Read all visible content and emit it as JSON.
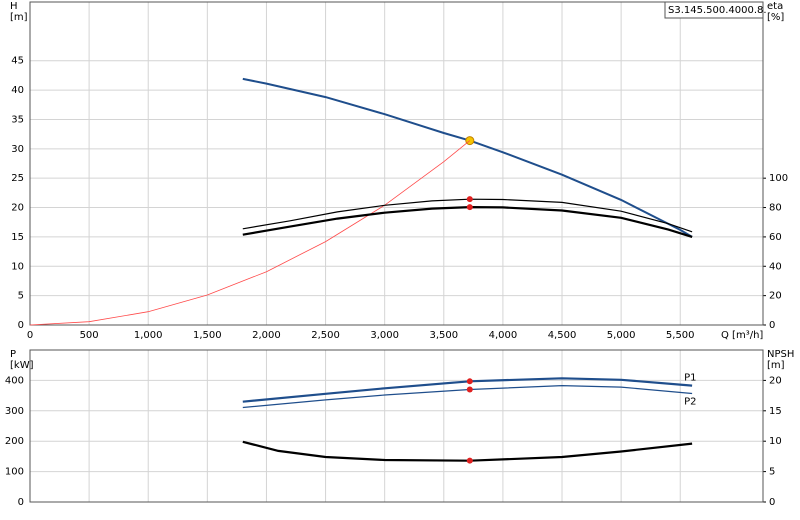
{
  "chart_data": [
    {
      "type": "line",
      "annotation": "S3.145.500.4000.8.",
      "y_label": "H",
      "y_unit": "[m]",
      "y2_label": "eta",
      "y2_unit": "[%]",
      "x_label": "Q [m³/h]",
      "xlim": [
        0,
        6200
      ],
      "ylim": [
        0,
        55
      ],
      "y2lim": [
        0,
        220
      ],
      "xticks": [
        0,
        500,
        {
          "value": 1000,
          "label": "1,000"
        },
        {
          "value": 1500,
          "label": "1,500"
        },
        {
          "value": 2000,
          "label": "2,000"
        },
        {
          "value": 2500,
          "label": "2,500"
        },
        {
          "value": 3000,
          "label": "3,000"
        },
        {
          "value": 3500,
          "label": "3,500"
        },
        {
          "value": 4000,
          "label": "4,000"
        },
        {
          "value": 4500,
          "label": "4,500"
        },
        {
          "value": 5000,
          "label": "5,000"
        },
        {
          "value": 5500,
          "label": "5,500"
        }
      ],
      "yticks": [
        0,
        5,
        10,
        15,
        20,
        25,
        30,
        35,
        40,
        45
      ],
      "y2ticks": [
        0,
        20,
        40,
        60,
        80,
        100
      ],
      "grid": true,
      "operating_point": {
        "x": 3720
      },
      "series": [
        {
          "color": "#1f4e8c",
          "width": 2,
          "marker_color": "#f5c400",
          "x": [
            1800,
            2000,
            2500,
            3000,
            3500,
            3720,
            4000,
            4500,
            5000,
            5500,
            5600
          ],
          "values": [
            41.9,
            41.1,
            38.8,
            35.9,
            32.7,
            31.4,
            29.4,
            25.6,
            21.3,
            16.2,
            15.0
          ]
        },
        {
          "color": "#ff4a4a",
          "width": 0.8,
          "x": [
            0,
            500,
            1000,
            1500,
            2000,
            2500,
            3000,
            3500,
            3720
          ],
          "values": [
            0,
            0.57,
            2.27,
            5.1,
            9.08,
            14.2,
            20.4,
            27.8,
            31.4
          ]
        },
        {
          "color": "#000000",
          "width": 1.2,
          "axis": "y2",
          "marker_color": "#e02020",
          "x": [
            1800,
            2200,
            2600,
            3000,
            3400,
            3720,
            4000,
            4500,
            5000,
            5400,
            5600
          ],
          "values": [
            65.5,
            71,
            77,
            81.5,
            84.5,
            85.7,
            85.5,
            83.5,
            77.5,
            69,
            63.5
          ]
        },
        {
          "color": "#000000",
          "width": 2.2,
          "axis": "y2",
          "marker_color": "#e02020",
          "x": [
            1800,
            2200,
            2600,
            3000,
            3400,
            3720,
            4000,
            4500,
            5000,
            5400,
            5600
          ],
          "values": [
            61.5,
            67,
            72.5,
            76.5,
            79.3,
            80.3,
            80.1,
            78,
            73,
            65,
            60
          ]
        }
      ]
    },
    {
      "type": "line",
      "y_label": "P",
      "y_unit": "[kW]",
      "y2_label": "NPSH",
      "y2_unit": "[m]",
      "xlim": [
        0,
        6200
      ],
      "ylim": [
        0,
        500
      ],
      "y2lim": [
        0,
        25
      ],
      "yticks": [
        0,
        100,
        200,
        300,
        400
      ],
      "y2ticks": [
        0,
        5,
        10,
        15,
        20
      ],
      "grid": true,
      "operating_point": {
        "x": 3720
      },
      "series": [
        {
          "name": "P1",
          "color": "#1f4e8c",
          "width": 2.2,
          "marker_color": "#e02020",
          "x": [
            1800,
            2500,
            3000,
            3720,
            4500,
            5000,
            5600
          ],
          "values": [
            330,
            356,
            374,
            397,
            407,
            402,
            383
          ]
        },
        {
          "name": "P2",
          "color": "#1f4e8c",
          "width": 1.2,
          "marker_color": "#e02020",
          "x": [
            1800,
            2500,
            3000,
            3720,
            4500,
            5000,
            5600
          ],
          "values": [
            311,
            336,
            352,
            370,
            383,
            378,
            357
          ]
        },
        {
          "color": "#000000",
          "width": 2.2,
          "axis": "y2",
          "marker_color": "#e02020",
          "x": [
            1800,
            2100,
            2500,
            3000,
            3720,
            4500,
            5000,
            5600
          ],
          "values": [
            9.9,
            8.4,
            7.4,
            6.9,
            6.8,
            7.4,
            8.3,
            9.6
          ]
        }
      ]
    }
  ]
}
